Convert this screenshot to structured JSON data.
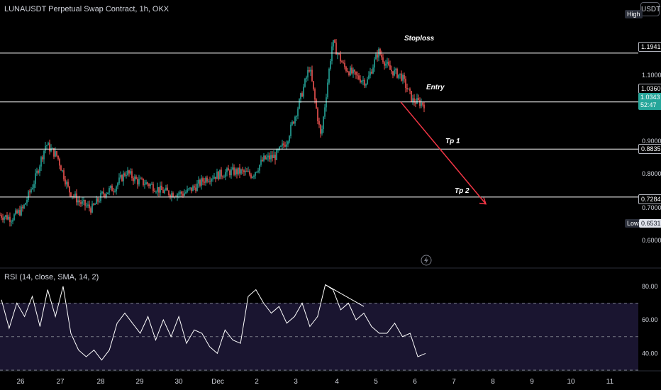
{
  "header": {
    "symbol_title": "LUNAUSDT Perpetual Swap Contract, 1h, OKX",
    "currency_button": "USDT",
    "high_label": "High",
    "low_label": "Low",
    "low_value": "0.6531"
  },
  "rsi_header": "RSI (14, close, SMA, 14, 2)",
  "colors": {
    "background": "#000000",
    "up": "#26a69a",
    "down": "#ef5350",
    "level_line": "#ffffff",
    "arrow": "#f23645",
    "rsi_line": "#ffffff",
    "rsi_band": "#1a1530",
    "current_price_bg": "#26a69a"
  },
  "price_axis": {
    "ticks": [
      "1.1000",
      "0.8000",
      "0.7000",
      "0.6000"
    ],
    "partial_tick": "0.9000",
    "current_price": "1.0343",
    "countdown": "52:47"
  },
  "levels": [
    {
      "name": "Stoploss",
      "price": 1.1941,
      "label": "1.1941"
    },
    {
      "name": "Entry",
      "price": 1.036,
      "label": "1.0360"
    },
    {
      "name": "Tp 1",
      "price": 0.8835,
      "label": "0.8835"
    },
    {
      "name": "Tp 2",
      "price": 0.7284,
      "label": "0.7284"
    }
  ],
  "x_axis": {
    "labels": [
      "26",
      "27",
      "28",
      "29",
      "30",
      "Dec",
      "2",
      "3",
      "4",
      "5",
      "6",
      "7",
      "8",
      "9",
      "10",
      "11"
    ]
  },
  "chart_data": {
    "type": "line",
    "title": "LUNAUSDT Perpetual Swap Contract, 1h, OKX",
    "price_range": [
      0.54,
      1.32
    ],
    "day_anchors": [
      "26",
      "27",
      "28",
      "29",
      "30",
      "Dec",
      "2",
      "3",
      "4",
      "5",
      "6"
    ],
    "price_path": [
      0.67,
      0.66,
      0.69,
      0.78,
      0.9,
      0.86,
      0.75,
      0.71,
      0.69,
      0.74,
      0.76,
      0.81,
      0.78,
      0.77,
      0.75,
      0.74,
      0.74,
      0.76,
      0.79,
      0.8,
      0.81,
      0.81,
      0.8,
      0.85,
      0.86,
      0.91,
      1.02,
      1.15,
      0.92,
      1.23,
      1.15,
      1.12,
      1.1,
      1.2,
      1.14,
      1.12,
      1.04,
      1.03
    ],
    "rsi": {
      "ylim": [
        30,
        85
      ],
      "band": [
        30,
        70
      ],
      "midline": 50,
      "ticks": [
        80,
        60,
        40
      ],
      "values": [
        72,
        55,
        70,
        62,
        74,
        56,
        78,
        62,
        80,
        52,
        42,
        38,
        42,
        36,
        42,
        58,
        64,
        58,
        52,
        62,
        48,
        60,
        50,
        62,
        46,
        54,
        52,
        44,
        40,
        54,
        48,
        46,
        74,
        78,
        70,
        64,
        68,
        58,
        62,
        70,
        56,
        62,
        81,
        78,
        66,
        70,
        60,
        64,
        56,
        52,
        52,
        58,
        50,
        52,
        38,
        40
      ]
    }
  }
}
